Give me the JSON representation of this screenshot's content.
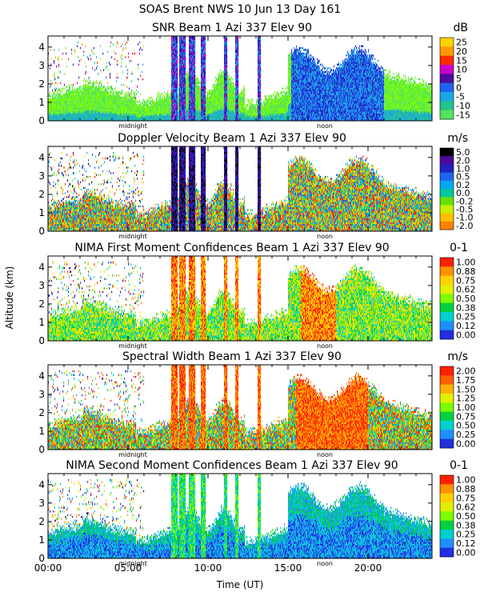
{
  "header": {
    "title": "SOAS Brent NWS  10 Jun 13 Day 161"
  },
  "y_axis_label": "Altitude (km)",
  "x_axis_label": "Time (UT)",
  "x_tick_labels": [
    "00:00",
    "05:00",
    "10:00",
    "15:00",
    "20:00"
  ],
  "x_tick_hours": [
    0,
    5,
    10,
    15,
    20
  ],
  "marker_labels": {
    "midnight": "midnight",
    "noon": "noon"
  },
  "y_tick_labels": [
    "0",
    "1",
    "2",
    "3",
    "4"
  ],
  "chart_data": [
    {
      "type": "heatmap",
      "title": "SNR Beam 1 Azi 337 Elev 90",
      "unit": "dB",
      "colorbar_labels": [
        "25",
        "20",
        "15",
        "10",
        "5",
        "0",
        "-5",
        "-10",
        "-15"
      ],
      "x_range_hours": [
        0,
        24
      ],
      "ylim_km": [
        0,
        4.6
      ],
      "ylabel": "Altitude (km)",
      "xlabel": "Time (UT)"
    },
    {
      "type": "heatmap",
      "title": "Doppler Velocity Beam 1 Azi 337 Elev 90",
      "unit": "m/s",
      "colorbar_labels": [
        "5.0",
        "2.0",
        "1.0",
        "0.5",
        "0.2",
        "0.0",
        "-0.2",
        "-0.5",
        "-1.0",
        "-2.0"
      ],
      "x_range_hours": [
        0,
        24
      ],
      "ylim_km": [
        0,
        4.6
      ],
      "ylabel": "Altitude (km)",
      "xlabel": "Time (UT)"
    },
    {
      "type": "heatmap",
      "title": "NIMA First Moment Confidences Beam 1 Azi 337 Elev 90",
      "unit": "0-1",
      "colorbar_labels": [
        "1.00",
        "0.88",
        "0.75",
        "0.62",
        "0.50",
        "0.38",
        "0.25",
        "0.12",
        "0.00"
      ],
      "x_range_hours": [
        0,
        24
      ],
      "ylim_km": [
        0,
        4.6
      ],
      "ylabel": "Altitude (km)",
      "xlabel": "Time (UT)"
    },
    {
      "type": "heatmap",
      "title": "Spectral Width Beam 1 Azi 337 Elev 90",
      "unit": "m/s",
      "colorbar_labels": [
        "2.00",
        "1.75",
        "1.50",
        "1.25",
        "1.00",
        "0.75",
        "0.50",
        "0.25",
        "0.00"
      ],
      "x_range_hours": [
        0,
        24
      ],
      "ylim_km": [
        0,
        4.6
      ],
      "ylabel": "Altitude (km)",
      "xlabel": "Time (UT)"
    },
    {
      "type": "heatmap",
      "title": "NIMA Second Moment Confidences Beam 1 Azi 337 Elev 90",
      "unit": "0-1",
      "colorbar_labels": [
        "1.00",
        "0.88",
        "0.75",
        "0.62",
        "0.50",
        "0.38",
        "0.25",
        "0.12",
        "0.00"
      ],
      "x_range_hours": [
        0,
        24
      ],
      "ylim_km": [
        0,
        4.6
      ],
      "ylabel": "Altitude (km)",
      "xlabel": "Time (UT)"
    }
  ]
}
